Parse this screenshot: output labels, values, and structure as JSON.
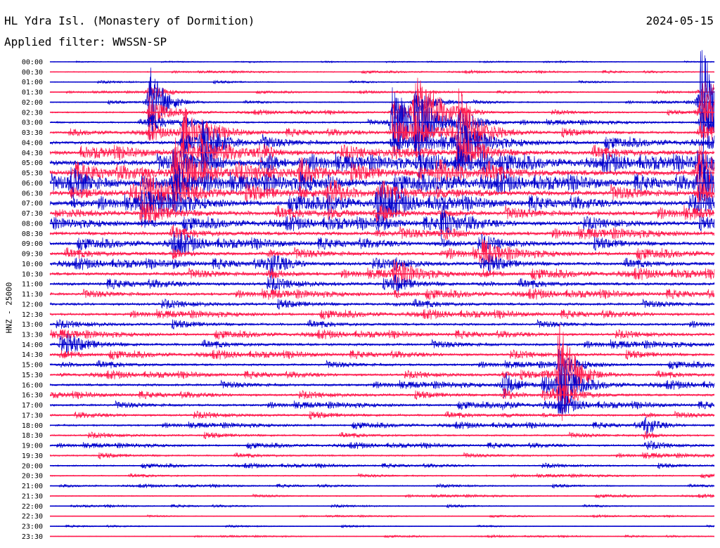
{
  "header": {
    "station": "HL Ydra Isl. (Monastery of Dormition)",
    "date": "2024-05-15",
    "filter": "Applied filter: WWSSN-SP"
  },
  "chart_data": {
    "type": "line",
    "title": "HL Ydra Isl. (Monastery of Dormition)",
    "date": "2024-05-15",
    "ylabel": "HNZ - 25000",
    "row_labels": [
      "00:00",
      "00:30",
      "01:00",
      "01:30",
      "02:00",
      "02:30",
      "03:00",
      "03:30",
      "04:00",
      "04:30",
      "05:00",
      "05:30",
      "06:00",
      "06:30",
      "07:00",
      "07:30",
      "08:00",
      "08:30",
      "09:00",
      "09:30",
      "10:00",
      "10:30",
      "11:00",
      "11:30",
      "12:00",
      "12:30",
      "13:00",
      "13:30",
      "14:00",
      "14:30",
      "15:00",
      "15:30",
      "16:00",
      "16:30",
      "17:00",
      "17:30",
      "18:00",
      "18:30",
      "19:00",
      "19:30",
      "20:00",
      "20:30",
      "21:00",
      "21:30",
      "22:00",
      "22:30",
      "23:00",
      "23:30"
    ],
    "row_colors": [
      "#0000cc",
      "#ff1a4d"
    ],
    "trace_minutes": 30,
    "noise_level": [
      0.3,
      0.5,
      0.5,
      0.5,
      0.6,
      0.8,
      1.0,
      1.4,
      2.0,
      2.5,
      3.0,
      3.0,
      3.0,
      2.8,
      2.6,
      2.4,
      2.2,
      2.1,
      2.0,
      1.9,
      1.8,
      1.8,
      1.7,
      1.6,
      1.5,
      1.5,
      1.4,
      1.4,
      1.5,
      1.4,
      1.3,
      1.3,
      1.4,
      1.3,
      1.3,
      1.2,
      1.1,
      1.0,
      1.0,
      0.9,
      0.8,
      0.7,
      0.6,
      0.6,
      0.5,
      0.4,
      0.4,
      0.4
    ],
    "events": [
      {
        "row": 5,
        "minute": 16.5,
        "amplitude": 70,
        "decay": 2.0
      },
      {
        "row": 4,
        "minute": 4.5,
        "amplitude": 55,
        "decay": 1.4
      },
      {
        "row": 4,
        "minute": 29.4,
        "amplitude": 80,
        "decay": 2.2
      },
      {
        "row": 6,
        "minute": 15.5,
        "amplitude": 55,
        "decay": 2.0
      },
      {
        "row": 7,
        "minute": 6.0,
        "amplitude": 40,
        "decay": 1.2
      },
      {
        "row": 7,
        "minute": 18.5,
        "amplitude": 60,
        "decay": 1.8
      },
      {
        "row": 8,
        "minute": 6.9,
        "amplitude": 45,
        "decay": 1.5
      },
      {
        "row": 9,
        "minute": 9.5,
        "amplitude": 12,
        "decay": 1.0
      },
      {
        "row": 10,
        "minute": 9.9,
        "amplitude": 10,
        "decay": 1.0
      },
      {
        "row": 10,
        "minute": 16.7,
        "amplitude": 18,
        "decay": 1.2
      },
      {
        "row": 10,
        "minute": 18.4,
        "amplitude": 14,
        "decay": 1.0
      },
      {
        "row": 10,
        "minute": 19.5,
        "amplitude": 16,
        "decay": 1.0
      },
      {
        "row": 11,
        "minute": 5.6,
        "amplitude": 60,
        "decay": 1.8
      },
      {
        "row": 11,
        "minute": 11.3,
        "amplitude": 22,
        "decay": 1.5
      },
      {
        "row": 11,
        "minute": 17.5,
        "amplitude": 20,
        "decay": 1.5
      },
      {
        "row": 11,
        "minute": 29.3,
        "amplitude": 55,
        "decay": 1.8
      },
      {
        "row": 12,
        "minute": 1.0,
        "amplitude": 18,
        "decay": 2.0
      },
      {
        "row": 13,
        "minute": 4.2,
        "amplitude": 30,
        "decay": 2.5
      },
      {
        "row": 13,
        "minute": 12.6,
        "amplitude": 25,
        "decay": 1.5
      },
      {
        "row": 14,
        "minute": 14.8,
        "amplitude": 30,
        "decay": 1.5
      },
      {
        "row": 16,
        "minute": 17.7,
        "amplitude": 20,
        "decay": 1.5
      },
      {
        "row": 18,
        "minute": 5.6,
        "amplitude": 14,
        "decay": 1.2
      },
      {
        "row": 19,
        "minute": 19.5,
        "amplitude": 18,
        "decay": 1.5
      },
      {
        "row": 20,
        "minute": 9.9,
        "amplitude": 16,
        "decay": 1.5
      },
      {
        "row": 21,
        "minute": 15.6,
        "amplitude": 18,
        "decay": 1.5
      },
      {
        "row": 28,
        "minute": 0.5,
        "amplitude": 12,
        "decay": 2.0
      },
      {
        "row": 31,
        "minute": 23.0,
        "amplitude": 80,
        "decay": 1.5
      },
      {
        "row": 32,
        "minute": 20.5,
        "amplitude": 20,
        "decay": 1.2
      },
      {
        "row": 32,
        "minute": 22.3,
        "amplitude": 16,
        "decay": 1.2
      },
      {
        "row": 36,
        "minute": 26.9,
        "amplitude": 14,
        "decay": 1.0
      }
    ]
  }
}
